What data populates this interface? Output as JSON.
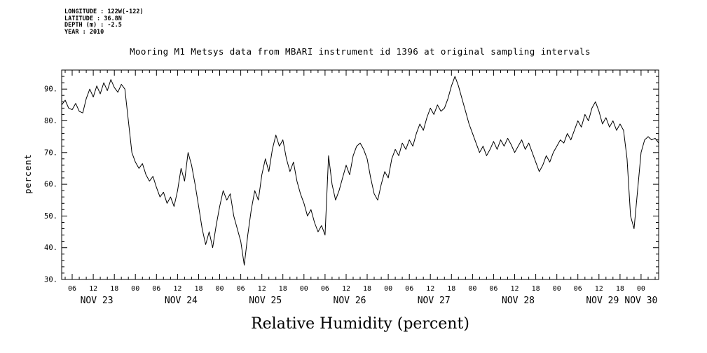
{
  "header": {
    "meta_lines": [
      "LONGITUDE : 122W(-122)",
      "LATITUDE : 36.8N",
      "DEPTH (m) : -2.5",
      "YEAR : 2010"
    ]
  },
  "chart_data": {
    "type": "line",
    "title": "Mooring M1 Metsys data from MBARI instrument id 1396 at original sampling intervals",
    "xlabel": "Relative Humidity (percent)",
    "ylabel": "percent",
    "ylim": [
      30,
      96
    ],
    "yticks": [
      30,
      40,
      50,
      60,
      70,
      80,
      90
    ],
    "ytick_suffix": ".",
    "y_minor_step": 2,
    "x_start_hour": 3,
    "x_end_hour": 173,
    "x_epoch": "2010-11-23 00:00",
    "xtick_interval_hours": 6,
    "xtick_minor_interval_hours": 2,
    "hour_label_cycle": [
      "00",
      "06",
      "12",
      "18"
    ],
    "day_labels": [
      "NOV 23",
      "NOV 24",
      "NOV 25",
      "NOV 26",
      "NOV 27",
      "NOV 28",
      "NOV 29",
      "NOV 30"
    ],
    "grid": false,
    "legend": null,
    "line_color": "#000000",
    "background": "#ffffff",
    "series": [
      {
        "name": "relative humidity (percent)",
        "t_start_hour": 3,
        "t_step_hours": 1,
        "values": [
          85,
          86.5,
          84,
          83.5,
          85.5,
          83,
          82.5,
          87,
          90,
          87.5,
          91,
          88.5,
          92,
          89.5,
          93,
          90.5,
          89,
          91.5,
          90,
          80,
          70,
          67,
          65,
          66.5,
          63,
          61,
          62.5,
          59,
          56,
          57.5,
          54,
          56,
          53,
          58,
          65,
          61,
          70,
          66,
          60,
          53,
          46,
          41,
          45,
          40,
          47,
          53,
          58,
          55,
          57,
          50,
          46,
          42,
          34.5,
          44,
          52,
          58,
          55,
          63,
          68,
          64,
          71,
          75.5,
          72,
          74,
          68,
          64,
          67,
          61,
          57,
          54,
          50,
          52,
          48,
          45,
          47,
          44,
          69,
          60,
          55,
          58,
          62,
          66,
          63,
          69,
          72,
          73,
          71,
          68,
          62,
          57,
          55,
          60,
          64,
          62,
          68,
          71,
          69,
          73,
          71,
          74,
          72,
          76,
          79,
          77,
          81,
          84,
          82,
          85,
          83,
          84,
          87,
          91,
          94,
          91,
          87,
          83,
          79,
          76,
          73,
          70,
          72,
          69,
          71,
          73.5,
          71,
          74,
          72,
          74.5,
          72.5,
          70,
          72,
          74,
          71,
          73,
          70,
          67,
          64,
          66,
          69,
          67,
          70,
          72,
          74,
          73,
          76,
          74,
          77,
          80,
          78,
          82,
          80,
          84,
          86,
          83,
          79,
          81,
          78,
          80,
          77,
          79,
          77,
          68,
          50,
          46,
          58,
          70,
          74,
          75,
          74,
          74.5,
          73
        ]
      }
    ]
  }
}
